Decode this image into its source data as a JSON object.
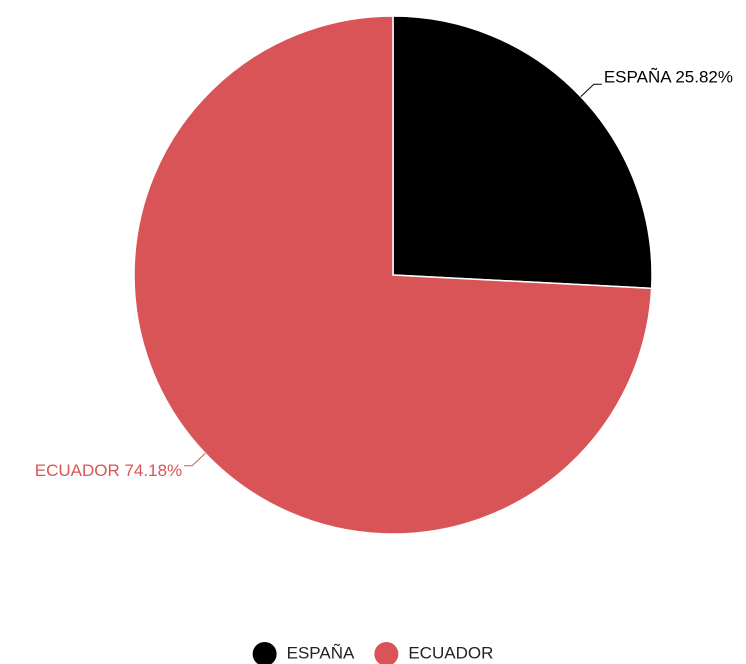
{
  "chart_data": {
    "type": "pie",
    "title": "",
    "slices": [
      {
        "label": "ESPAÑA",
        "value": 25.82,
        "value_label": "ESPAÑA 25.82%",
        "color": "#000000",
        "label_color": "#000000"
      },
      {
        "label": "ECUADOR",
        "value": 74.18,
        "value_label": "ECUADOR 74.18%",
        "color": "#d95457",
        "label_color": "#d95457"
      }
    ],
    "legend": {
      "position": "bottom",
      "items": [
        {
          "label": "ESPAÑA",
          "color": "#000000"
        },
        {
          "label": "ECUADOR",
          "color": "#d95457"
        }
      ]
    }
  }
}
